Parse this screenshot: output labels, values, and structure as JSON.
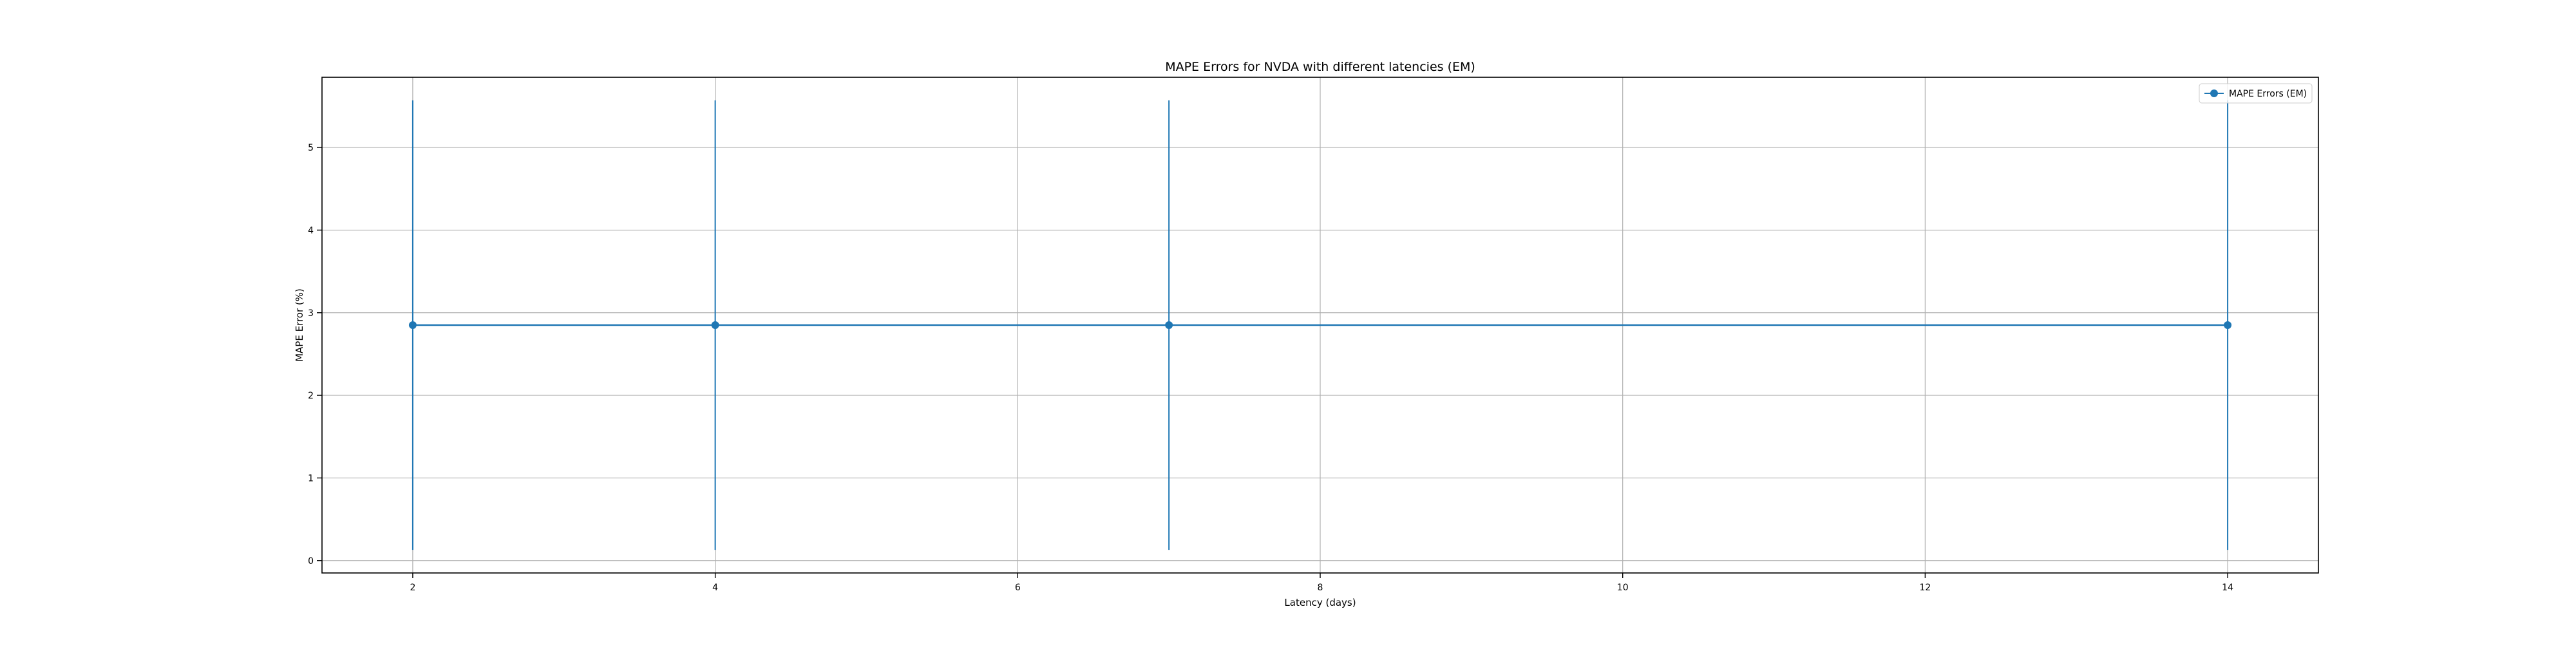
{
  "chart_data": {
    "type": "line",
    "title": "MAPE Errors for NVDA with different latencies (EM)",
    "xlabel": "Latency (days)",
    "ylabel": "MAPE Error (%)",
    "xlim": [
      1.4,
      14.6
    ],
    "ylim": [
      -0.15,
      5.85
    ],
    "xticks": [
      2,
      4,
      6,
      8,
      10,
      12,
      14
    ],
    "yticks": [
      0,
      1,
      2,
      3,
      4,
      5
    ],
    "grid": true,
    "legend_position": "top-right",
    "series": [
      {
        "name": "MAPE Errors (EM)",
        "color": "#1f77b4",
        "marker": "circle",
        "x": [
          2,
          4,
          7,
          14
        ],
        "y": [
          2.85,
          2.85,
          2.85,
          2.85
        ],
        "yerr": [
          2.72,
          2.72,
          2.72,
          2.72
        ]
      }
    ]
  }
}
